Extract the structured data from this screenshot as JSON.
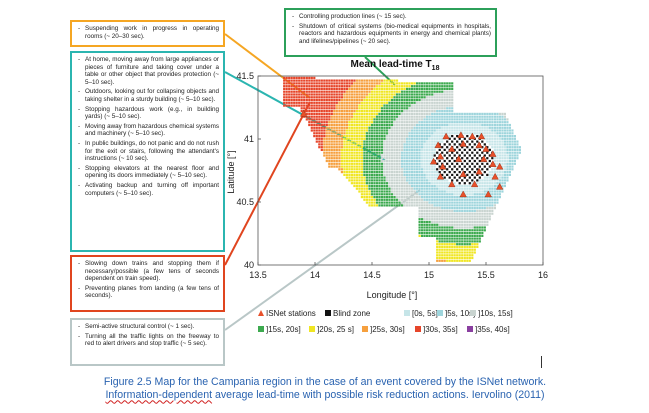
{
  "boxes": {
    "orange": [
      "Suspending work in progress in operating rooms (~ 20–30 sec)."
    ],
    "blue": [
      "At home, moving away from large appliances or pieces of furniture and taking cover under a table or other object that provides protection (~ 5–10 sec).",
      "Outdoors, looking out for collapsing objects and taking shelter in a sturdy building (~ 5–10 sec).",
      "Stopping hazardous work (e.g., in building yards) (~ 5–10 sec).",
      "Moving away from hazardous chemical systems and machinery (~ 5–10 sec).",
      "In public buildings, do not panic and do not rush for the exit or stairs, following the attendant's instructions (~ 10 sec).",
      "Stopping elevators at the nearest floor and opening its doors immediately (~ 5–10 sec).",
      "Activating backup and turning off important computers (~ 5–10 sec)."
    ],
    "red": [
      "Slowing down trains and stopping them if necessary/possible (a few tens of seconds dependent on train speed).",
      "Preventing planes from landing (a few tens of seconds)."
    ],
    "gray": [
      "Semi-active structural control (~ 1 sec).",
      "Turning all the traffic lights on the freeway to red to alert drivers and stop traffic (~ 5 sec)."
    ],
    "green": [
      "Controlling production lines (~ 15 sec).",
      "Shutdown of critical systems (bio-medical equipments in hospitals, reactors and hazardous equipments in energy and chemical plants) and lifelines/pipelines (~ 20 sec)."
    ]
  },
  "colors": {
    "orange_box": "#f5a623",
    "blue_box": "#2bb5b0",
    "red_box": "#e0451f",
    "gray_box": "#b9c7c7",
    "green_box": "#2ca05a",
    "caption": "#2a63b0"
  },
  "chart_data": {
    "type": "heatmap",
    "title": "Mean lead-time T",
    "title_subscript": "18",
    "xlabel": "Longitude [°]",
    "ylabel": "Latitude [°]",
    "xlim": [
      13.5,
      16
    ],
    "ylim": [
      40,
      41.5
    ],
    "x_ticks": [
      "13.5",
      "14",
      "14.5",
      "15",
      "15.5",
      "16"
    ],
    "y_ticks": [
      "40",
      "40.5",
      "41",
      "41.5"
    ],
    "grid": false,
    "legend": {
      "placement": "bottom",
      "entries": [
        {
          "label": "ISNet stations",
          "marker": "triangle",
          "color": "#e8502a"
        },
        {
          "label": "Blind zone",
          "marker": "square",
          "color": "#111111"
        },
        {
          "label": "[0s, 5s]",
          "marker": "square",
          "color": "#c6e5e8"
        },
        {
          "label": "]5s, 10s]",
          "marker": "square",
          "color": "#9ed5dc"
        },
        {
          "label": "]10s, 15s]",
          "marker": "square",
          "color": "#c9d4d0"
        },
        {
          "label": "]15s, 20s]",
          "marker": "square",
          "color": "#3daa4f"
        },
        {
          "label": "]20s, 25 s]",
          "marker": "square",
          "color": "#f0e623"
        },
        {
          "label": "]25s, 30s]",
          "marker": "square",
          "color": "#f6a03e"
        },
        {
          "label": "]30s, 35s]",
          "marker": "square",
          "color": "#e6452a"
        },
        {
          "label": "]35s, 40s]",
          "marker": "square",
          "color": "#8a3fa0"
        }
      ]
    },
    "stations": [
      [
        15.08,
        40.95
      ],
      [
        15.15,
        41.02
      ],
      [
        15.28,
        41.03
      ],
      [
        15.38,
        41.02
      ],
      [
        15.46,
        41.02
      ],
      [
        15.1,
        40.86
      ],
      [
        15.2,
        40.92
      ],
      [
        15.3,
        40.96
      ],
      [
        15.44,
        40.95
      ],
      [
        15.5,
        40.92
      ],
      [
        15.56,
        40.88
      ],
      [
        15.04,
        40.82
      ],
      [
        15.12,
        40.78
      ],
      [
        15.26,
        40.84
      ],
      [
        15.48,
        40.84
      ],
      [
        15.56,
        40.8
      ],
      [
        15.62,
        40.78
      ],
      [
        15.1,
        40.7
      ],
      [
        15.3,
        40.72
      ],
      [
        15.44,
        40.74
      ],
      [
        15.58,
        40.7
      ],
      [
        15.2,
        40.64
      ],
      [
        15.4,
        40.64
      ],
      [
        15.62,
        40.62
      ],
      [
        15.3,
        40.56
      ],
      [
        15.52,
        40.56
      ],
      [
        13.9,
        41.2
      ]
    ]
  },
  "caption": {
    "line1": "Figure 2.5 Map for the Campania region in the case of an event covered by the ISNet network.",
    "line2_prefix": "Information-dependent",
    "line2_rest": " average lead-time with possible risk reduction actions. Iervolino (2011)"
  }
}
